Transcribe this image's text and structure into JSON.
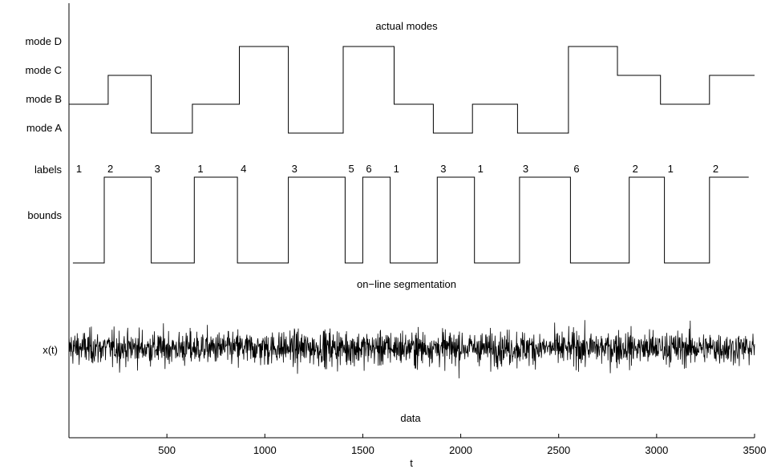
{
  "chart_data": {
    "type": "line",
    "xlabel": "t",
    "xlim": [
      0,
      3500
    ],
    "xticks": [
      500,
      1000,
      1500,
      2000,
      2500,
      3000,
      3500
    ],
    "grid": false,
    "panels": {
      "modes": {
        "title": "actual modes",
        "levels": [
          "mode A",
          "mode B",
          "mode C",
          "mode D"
        ],
        "segments": [
          {
            "start": 0,
            "end": 200,
            "mode": "mode B"
          },
          {
            "start": 200,
            "end": 420,
            "mode": "mode C"
          },
          {
            "start": 420,
            "end": 630,
            "mode": "mode A"
          },
          {
            "start": 630,
            "end": 870,
            "mode": "mode B"
          },
          {
            "start": 870,
            "end": 1120,
            "mode": "mode D"
          },
          {
            "start": 1120,
            "end": 1400,
            "mode": "mode A"
          },
          {
            "start": 1400,
            "end": 1660,
            "mode": "mode D"
          },
          {
            "start": 1660,
            "end": 1860,
            "mode": "mode B"
          },
          {
            "start": 1860,
            "end": 2060,
            "mode": "mode A"
          },
          {
            "start": 2060,
            "end": 2290,
            "mode": "mode B"
          },
          {
            "start": 2290,
            "end": 2550,
            "mode": "mode A"
          },
          {
            "start": 2550,
            "end": 2800,
            "mode": "mode D"
          },
          {
            "start": 2800,
            "end": 3020,
            "mode": "mode C"
          },
          {
            "start": 3020,
            "end": 3270,
            "mode": "mode B"
          },
          {
            "start": 3270,
            "end": 3500,
            "mode": "mode C"
          }
        ]
      },
      "segmentation": {
        "title": "on−line segmentation",
        "labels_axis_label": "labels",
        "bounds_axis_label": "bounds",
        "segments": [
          {
            "start": 20,
            "end": 180,
            "label": "1",
            "level": "low"
          },
          {
            "start": 180,
            "end": 420,
            "label": "2",
            "level": "high"
          },
          {
            "start": 420,
            "end": 640,
            "label": "3",
            "level": "low"
          },
          {
            "start": 640,
            "end": 860,
            "label": "1",
            "level": "high"
          },
          {
            "start": 860,
            "end": 1120,
            "label": "4",
            "level": "low"
          },
          {
            "start": 1120,
            "end": 1410,
            "label": "3",
            "level": "high"
          },
          {
            "start": 1410,
            "end": 1500,
            "label": "5",
            "level": "low"
          },
          {
            "start": 1500,
            "end": 1640,
            "label": "6",
            "level": "high"
          },
          {
            "start": 1640,
            "end": 1880,
            "label": "1",
            "level": "low"
          },
          {
            "start": 1880,
            "end": 2070,
            "label": "3",
            "level": "high"
          },
          {
            "start": 2070,
            "end": 2300,
            "label": "1",
            "level": "low"
          },
          {
            "start": 2300,
            "end": 2560,
            "label": "3",
            "level": "high"
          },
          {
            "start": 2560,
            "end": 2860,
            "label": "6",
            "level": "low"
          },
          {
            "start": 2860,
            "end": 3040,
            "label": "2",
            "level": "high"
          },
          {
            "start": 3040,
            "end": 3270,
            "label": "1",
            "level": "low"
          },
          {
            "start": 3270,
            "end": 3470,
            "label": "2",
            "level": "high"
          }
        ]
      },
      "signal": {
        "ylabel": "x(t)",
        "annotation": "data",
        "x_range": [
          0,
          3500
        ],
        "samples": 1750
      }
    }
  }
}
